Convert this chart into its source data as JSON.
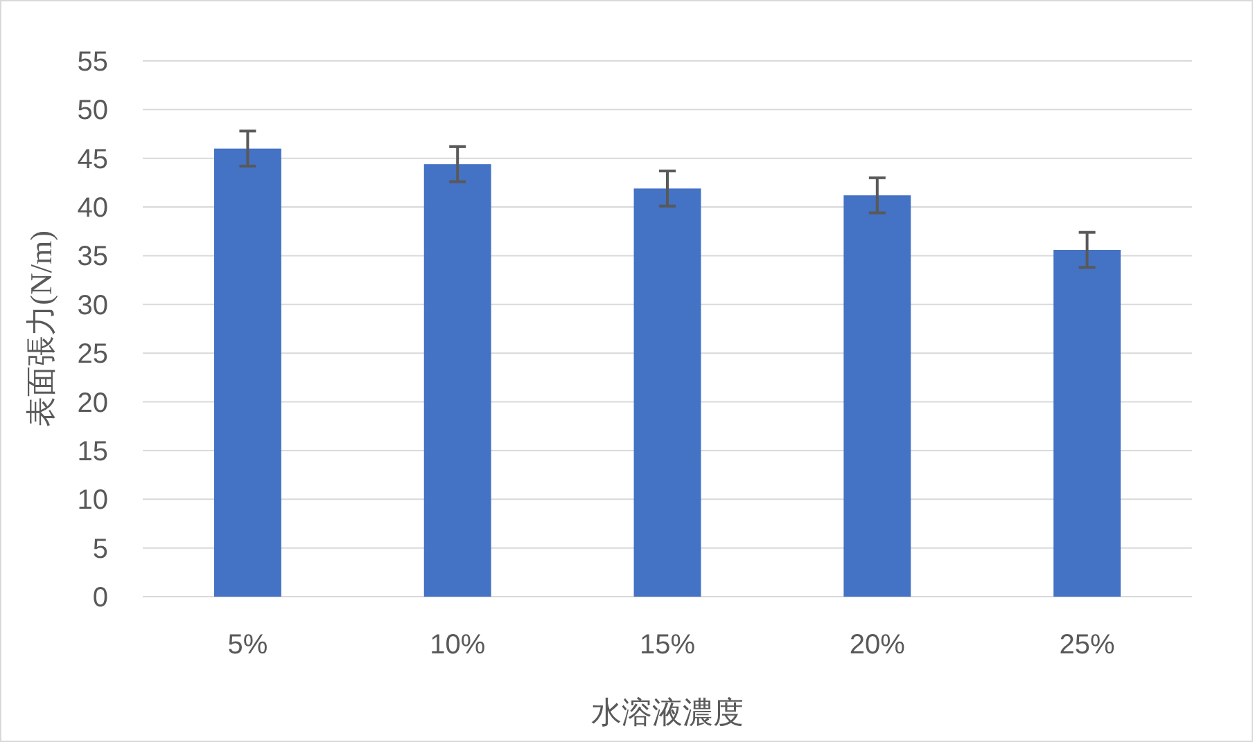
{
  "chart_data": {
    "type": "bar",
    "xlabel": "水溶液濃度",
    "ylabel": "表面張力(N/m)",
    "categories": [
      "5%",
      "10%",
      "15%",
      "20%",
      "25%"
    ],
    "series": [
      {
        "color": "#4472c4",
        "values": [
          46,
          44.4,
          41.9,
          41.2,
          35.6
        ],
        "errors": [
          1.8,
          1.8,
          1.8,
          1.8,
          1.8
        ]
      }
    ],
    "ylim": [
      0,
      55
    ],
    "yticks": [
      0,
      5,
      10,
      15,
      20,
      25,
      30,
      35,
      40,
      45,
      50,
      55
    ],
    "grid": "y"
  }
}
